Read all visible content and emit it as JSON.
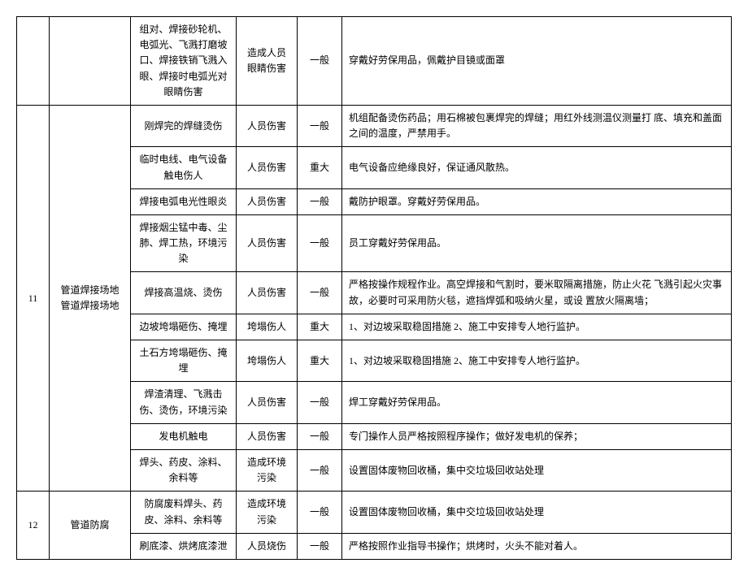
{
  "table": {
    "columns": {
      "num_width": 40,
      "loc_width": 100,
      "hazard_width": 130,
      "cons_width": 75,
      "level_width": 55
    },
    "rows": [
      {
        "num": "",
        "loc": "",
        "hazard": "组对、焊接砂轮机、电弧光、飞溅打磨坡口、焊接铁销飞溅入眼、焊接时电弧光对眼睛伤害",
        "cons": "造成人员眼睛伤害",
        "level": "一般",
        "measure": "穿戴好劳保用品，佩戴护目镜或面罩",
        "num_rowspan": 1,
        "loc_rowspan": 1
      },
      {
        "num": "11",
        "loc": "管道焊接场地管道焊接场地",
        "hazard": "刚焊完的焊缝烫伤",
        "cons": "人员伤害",
        "level": "一般",
        "measure": "机组配备烫伤药品；用石棉被包裹焊完的焊缝；用红外线测温仪测量打 底、填充和盖面之间的温度，严禁用手。",
        "num_rowspan": 10,
        "loc_rowspan": 10
      },
      {
        "hazard": "临时电线、电气设备触电伤人",
        "cons": "人员伤害",
        "level": "重大",
        "measure": "电气设备应绝缘良好，保证通风散热。"
      },
      {
        "hazard": "焊接电弧电光性眼炎",
        "cons": "人员伤害",
        "level": "一般",
        "measure": "戴防护眼罩。穿戴好劳保用品。"
      },
      {
        "hazard": "焊接烟尘锰中毒、尘肺、焊工热，环境污染",
        "cons": "人员伤害",
        "level": "一般",
        "measure": "员工穿戴好劳保用品。"
      },
      {
        "hazard": "焊接高温烧、烫伤",
        "cons": "人员伤害",
        "level": "一般",
        "measure": "严格按操作规程作业。高空焊接和气割时，要米取隔离措施，防止火花 飞溅引起火灾事故，必要时可采用防火毯，遮挡焊弧和吸纳火星，或设 置放火隔离墙；"
      },
      {
        "hazard": "边坡垮塌砸伤、掩埋",
        "cons": "垮塌伤人",
        "level": "重大",
        "measure": "1、对边坡采取稳固措施 2、施工中安排专人地行监护。"
      },
      {
        "hazard": "土石方垮塌砸伤、掩埋",
        "cons": "垮塌伤人",
        "level": "重大",
        "measure": "1、对边坡采取稳固措施 2、施工中安排专人地行监护。"
      },
      {
        "hazard": "焊渣清理、飞溅击伤、烫伤，环境污染",
        "cons": "人员伤害",
        "level": "一般",
        "measure": "焊工穿戴好劳保用品。"
      },
      {
        "hazard": "发电机触电",
        "cons": "人员伤害",
        "level": "一般",
        "measure": "专门操作人员严格按照程序操作；做好发电机的保养；"
      },
      {
        "hazard": "焊头、药皮、涂料、余料等",
        "cons": "造成环境污染",
        "level": "一般",
        "measure": "设置固体废物回收桶，集中交垃圾回收站处理"
      },
      {
        "num": "12",
        "loc": "管道防腐",
        "hazard": "防腐废料焊头、药皮、涂料、余料等",
        "cons": "造成环境污染",
        "level": "一般",
        "measure": "设置固体废物回收桶，集中交垃圾回收站处理",
        "num_rowspan": 2,
        "loc_rowspan": 2
      },
      {
        "hazard": "刷底漆、烘烤底漆泄",
        "cons": "人员烧伤",
        "level": "一般",
        "measure": "严格按照作业指导书操作；烘烤时，火头不能对着人。"
      }
    ]
  }
}
